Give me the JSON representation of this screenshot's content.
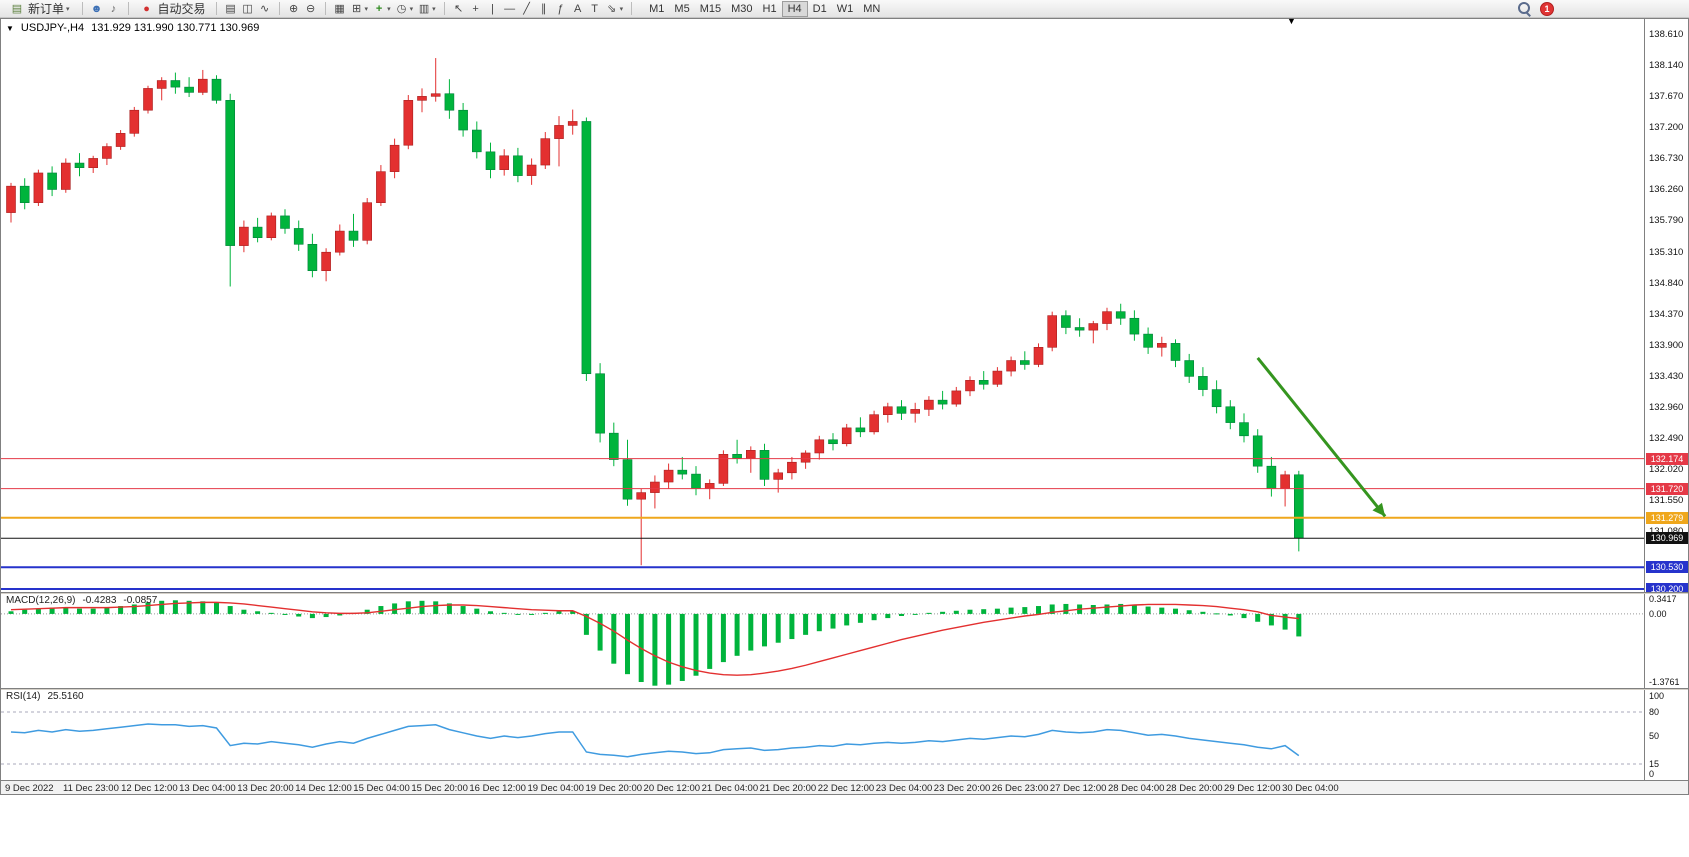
{
  "toolbar": {
    "new_order_label": "新订单",
    "autotrade_label": "自动交易",
    "notification_count": "1",
    "timeframes": [
      "M1",
      "M5",
      "M15",
      "M30",
      "H1",
      "H4",
      "D1",
      "W1",
      "MN"
    ],
    "active_timeframe": "H4",
    "left_icons": [
      {
        "name": "market-watch-icon",
        "glyph": "☻",
        "color": "#3b6fb5"
      },
      {
        "name": "alerts-icon",
        "glyph": "♪",
        "color": "#666666"
      }
    ],
    "chart_type_icons": [
      {
        "name": "bar-chart-icon",
        "glyph": "▤",
        "color": "#444444"
      },
      {
        "name": "candlestick-icon",
        "glyph": "◫",
        "color": "#444444"
      },
      {
        "name": "line-chart-icon",
        "glyph": "∿",
        "color": "#444444"
      }
    ],
    "zoom_icons": [
      {
        "name": "zoom-in-icon",
        "glyph": "⊕",
        "color": "#444444"
      },
      {
        "name": "zoom-out-icon",
        "glyph": "⊖",
        "color": "#444444"
      }
    ],
    "window_icons": [
      {
        "name": "tile-windows-icon",
        "glyph": "▦",
        "color": "#444444"
      },
      {
        "name": "auto-arrange-icon",
        "glyph": "⊞",
        "color": "#444444",
        "dropdown": true
      },
      {
        "name": "indicators-icon",
        "glyph": "+",
        "color": "#2e8b1e",
        "dropdown": true
      },
      {
        "name": "periods-icon",
        "glyph": "◷",
        "color": "#444444",
        "dropdown": true
      },
      {
        "name": "templates-icon",
        "glyph": "▥",
        "color": "#444444",
        "dropdown": true
      }
    ],
    "draw_icons": [
      {
        "name": "cursor-icon",
        "glyph": "↖",
        "color": "#444444"
      },
      {
        "name": "crosshair-icon",
        "glyph": "+",
        "color": "#444444"
      },
      {
        "name": "vertical-line-icon",
        "glyph": "|",
        "color": "#444444"
      },
      {
        "name": "horizontal-line-icon",
        "glyph": "―",
        "color": "#444444"
      },
      {
        "name": "trendline-icon",
        "glyph": "╱",
        "color": "#444444"
      },
      {
        "name": "channel-icon",
        "glyph": "∥",
        "color": "#444444"
      },
      {
        "name": "fibonacci-icon",
        "glyph": "ƒ",
        "color": "#444444"
      },
      {
        "name": "text-icon",
        "glyph": "A",
        "color": "#444444"
      },
      {
        "name": "label-icon",
        "glyph": "T",
        "color": "#444444"
      },
      {
        "name": "arrows-icon",
        "glyph": "⇘",
        "color": "#444444",
        "dropdown": true
      }
    ]
  },
  "chart_header": {
    "collapse_marker": "▼",
    "shift_marker": "▼",
    "symbol_period": "USDJPY-,H4",
    "ohlc": "131.929 131.990 130.771 130.969"
  },
  "chart_data": [
    {
      "type": "candlestick",
      "title": "USDJPY-,H4",
      "open": "131.929",
      "high": "131.990",
      "low": "130.771",
      "close": "130.969",
      "ylim": [
        130.17,
        138.68
      ],
      "up_color": "#e33030",
      "up_border": "#a81f1f",
      "down_color": "#00b43c",
      "down_border": "#00803a",
      "y_ticks": [
        "138.610",
        "138.140",
        "137.670",
        "137.200",
        "136.730",
        "136.260",
        "135.790",
        "135.310",
        "134.840",
        "134.370",
        "133.900",
        "133.430",
        "132.960",
        "132.490",
        "132.020",
        "131.550",
        "131.080"
      ],
      "x_labels": [
        "9 Dec 2022",
        "11 Dec 23:00",
        "12 Dec 12:00",
        "13 Dec 04:00",
        "13 Dec 20:00",
        "14 Dec 12:00",
        "15 Dec 04:00",
        "15 Dec 20:00",
        "16 Dec 12:00",
        "19 Dec 04:00",
        "19 Dec 20:00",
        "20 Dec 12:00",
        "21 Dec 04:00",
        "21 Dec 20:00",
        "22 Dec 12:00",
        "23 Dec 04:00",
        "23 Dec 20:00",
        "26 Dec 23:00",
        "27 Dec 12:00",
        "28 Dec 04:00",
        "28 Dec 20:00",
        "29 Dec 12:00",
        "30 Dec 04:00"
      ],
      "hlines": [
        {
          "price": 132.174,
          "label": "132.174",
          "color": "#e53947",
          "width": 1
        },
        {
          "price": 131.72,
          "label": "131.720",
          "color": "#e53947",
          "width": 1
        },
        {
          "price": 131.279,
          "label": "131.279",
          "color": "#efa71c",
          "width": 2
        },
        {
          "price": 130.969,
          "label": "130.969",
          "color": "#111111",
          "width": 1
        },
        {
          "price": 130.53,
          "label": "130.530",
          "color": "#2633cc",
          "width": 2
        },
        {
          "price": 130.2,
          "label": "130.200",
          "color": "#2633cc",
          "width": 2
        }
      ],
      "arrow": {
        "from_index": 91,
        "from_price": 133.7,
        "to_index": 100.3,
        "to_price": 131.3,
        "color": "#35951f"
      },
      "candles": [
        [
          135.9,
          136.35,
          135.75,
          136.3
        ],
        [
          136.3,
          136.42,
          135.95,
          136.05
        ],
        [
          136.05,
          136.55,
          136.0,
          136.5
        ],
        [
          136.5,
          136.6,
          136.15,
          136.25
        ],
        [
          136.25,
          136.72,
          136.2,
          136.65
        ],
        [
          136.65,
          136.8,
          136.45,
          136.58
        ],
        [
          136.58,
          136.76,
          136.5,
          136.72
        ],
        [
          136.72,
          136.95,
          136.62,
          136.9
        ],
        [
          136.9,
          137.15,
          136.85,
          137.1
        ],
        [
          137.1,
          137.5,
          137.05,
          137.45
        ],
        [
          137.45,
          137.82,
          137.4,
          137.78
        ],
        [
          137.78,
          137.95,
          137.6,
          137.9
        ],
        [
          137.9,
          138.02,
          137.7,
          137.8
        ],
        [
          137.8,
          137.95,
          137.65,
          137.72
        ],
        [
          137.72,
          138.06,
          137.68,
          137.92
        ],
        [
          137.92,
          137.98,
          137.55,
          137.6
        ],
        [
          137.6,
          137.7,
          134.78,
          135.4
        ],
        [
          135.4,
          135.78,
          135.3,
          135.68
        ],
        [
          135.68,
          135.82,
          135.45,
          135.52
        ],
        [
          135.52,
          135.9,
          135.48,
          135.85
        ],
        [
          135.85,
          135.95,
          135.58,
          135.66
        ],
        [
          135.66,
          135.78,
          135.32,
          135.42
        ],
        [
          135.42,
          135.58,
          134.92,
          135.02
        ],
        [
          135.02,
          135.36,
          134.86,
          135.3
        ],
        [
          135.3,
          135.72,
          135.25,
          135.62
        ],
        [
          135.62,
          135.88,
          135.38,
          135.48
        ],
        [
          135.48,
          136.12,
          135.42,
          136.05
        ],
        [
          136.05,
          136.62,
          136.0,
          136.52
        ],
        [
          136.52,
          137.02,
          136.42,
          136.92
        ],
        [
          136.92,
          137.68,
          136.86,
          137.6
        ],
        [
          137.6,
          137.78,
          137.42,
          137.66
        ],
        [
          137.66,
          138.24,
          137.58,
          137.7
        ],
        [
          137.7,
          137.92,
          137.32,
          137.45
        ],
        [
          137.45,
          137.56,
          137.05,
          137.15
        ],
        [
          137.15,
          137.28,
          136.72,
          136.82
        ],
        [
          136.82,
          136.96,
          136.42,
          136.55
        ],
        [
          136.55,
          136.86,
          136.46,
          136.76
        ],
        [
          136.76,
          136.88,
          136.36,
          136.46
        ],
        [
          136.46,
          136.72,
          136.32,
          136.62
        ],
        [
          136.62,
          137.12,
          136.56,
          137.02
        ],
        [
          137.02,
          137.36,
          136.6,
          137.22
        ],
        [
          137.22,
          137.46,
          137.08,
          137.28
        ],
        [
          137.28,
          137.34,
          133.35,
          133.46
        ],
        [
          133.46,
          133.62,
          132.42,
          132.56
        ],
        [
          132.56,
          132.72,
          132.06,
          132.16
        ],
        [
          132.16,
          132.46,
          131.46,
          131.56
        ],
        [
          131.56,
          131.72,
          130.56,
          131.66
        ],
        [
          131.66,
          131.92,
          131.42,
          131.82
        ],
        [
          131.82,
          132.1,
          131.72,
          132.0
        ],
        [
          132.0,
          132.2,
          131.86,
          131.94
        ],
        [
          131.94,
          132.06,
          131.62,
          131.72
        ],
        [
          131.72,
          131.86,
          131.56,
          131.8
        ],
        [
          131.8,
          132.3,
          131.76,
          132.24
        ],
        [
          132.24,
          132.46,
          132.1,
          132.18
        ],
        [
          132.18,
          132.36,
          131.96,
          132.3
        ],
        [
          132.3,
          132.4,
          131.76,
          131.86
        ],
        [
          131.86,
          132.02,
          131.66,
          131.96
        ],
        [
          131.96,
          132.2,
          131.86,
          132.12
        ],
        [
          132.12,
          132.3,
          132.02,
          132.26
        ],
        [
          132.26,
          132.52,
          132.16,
          132.46
        ],
        [
          132.46,
          132.56,
          132.3,
          132.4
        ],
        [
          132.4,
          132.7,
          132.36,
          132.64
        ],
        [
          132.64,
          132.8,
          132.5,
          132.58
        ],
        [
          132.58,
          132.9,
          132.54,
          132.84
        ],
        [
          132.84,
          133.02,
          132.72,
          132.96
        ],
        [
          132.96,
          133.06,
          132.76,
          132.86
        ],
        [
          132.86,
          133.02,
          132.72,
          132.92
        ],
        [
          132.92,
          133.12,
          132.82,
          133.06
        ],
        [
          133.06,
          133.2,
          132.92,
          133.0
        ],
        [
          133.0,
          133.26,
          132.96,
          133.2
        ],
        [
          133.2,
          133.42,
          133.12,
          133.36
        ],
        [
          133.36,
          133.5,
          133.22,
          133.3
        ],
        [
          133.3,
          133.56,
          133.26,
          133.5
        ],
        [
          133.5,
          133.72,
          133.42,
          133.66
        ],
        [
          133.66,
          133.8,
          133.52,
          133.6
        ],
        [
          133.6,
          133.92,
          133.56,
          133.86
        ],
        [
          133.86,
          134.4,
          133.8,
          134.34
        ],
        [
          134.34,
          134.42,
          134.06,
          134.16
        ],
        [
          134.16,
          134.3,
          134.02,
          134.12
        ],
        [
          134.12,
          134.26,
          133.92,
          134.22
        ],
        [
          134.22,
          134.46,
          134.12,
          134.4
        ],
        [
          134.4,
          134.52,
          134.2,
          134.3
        ],
        [
          134.3,
          134.42,
          133.96,
          134.06
        ],
        [
          134.06,
          134.16,
          133.76,
          133.86
        ],
        [
          133.86,
          134.02,
          133.72,
          133.92
        ],
        [
          133.92,
          133.98,
          133.56,
          133.66
        ],
        [
          133.66,
          133.76,
          133.32,
          133.42
        ],
        [
          133.42,
          133.56,
          133.12,
          133.22
        ],
        [
          133.22,
          133.36,
          132.86,
          132.96
        ],
        [
          132.96,
          133.06,
          132.62,
          132.72
        ],
        [
          132.72,
          132.86,
          132.42,
          132.52
        ],
        [
          132.52,
          132.62,
          131.96,
          132.06
        ],
        [
          132.06,
          132.2,
          131.6,
          131.72
        ],
        [
          131.72,
          131.99,
          131.45,
          131.93
        ],
        [
          131.93,
          131.99,
          130.77,
          130.97
        ]
      ]
    },
    {
      "type": "macd",
      "label": "MACD(12,26,9)",
      "value_main": "-0.4283",
      "value_signal": "-0.0857",
      "ylim": [
        -1.3761,
        0.3417
      ],
      "y_ticks": [
        "0.3417",
        "0.00",
        "-1.3761"
      ],
      "hist_color": "#00b43c",
      "signal_color": "#e33030",
      "histogram": [
        0.05,
        0.08,
        0.1,
        0.12,
        0.12,
        0.1,
        0.1,
        0.12,
        0.15,
        0.18,
        0.22,
        0.25,
        0.26,
        0.25,
        0.24,
        0.22,
        0.15,
        0.08,
        0.05,
        0.02,
        -0.02,
        -0.05,
        -0.08,
        -0.06,
        -0.03,
        0.02,
        0.08,
        0.15,
        0.2,
        0.24,
        0.25,
        0.24,
        0.2,
        0.15,
        0.1,
        0.05,
        0.02,
        0.0,
        -0.02,
        0.02,
        0.05,
        0.05,
        -0.4,
        -0.7,
        -0.95,
        -1.15,
        -1.3,
        -1.37,
        -1.35,
        -1.28,
        -1.18,
        -1.05,
        -0.92,
        -0.8,
        -0.7,
        -0.62,
        -0.55,
        -0.48,
        -0.4,
        -0.33,
        -0.28,
        -0.22,
        -0.17,
        -0.12,
        -0.08,
        -0.04,
        -0.01,
        0.02,
        0.04,
        0.06,
        0.08,
        0.09,
        0.1,
        0.12,
        0.13,
        0.15,
        0.18,
        0.19,
        0.18,
        0.17,
        0.18,
        0.19,
        0.17,
        0.14,
        0.12,
        0.1,
        0.07,
        0.04,
        0.01,
        -0.03,
        -0.08,
        -0.15,
        -0.22,
        -0.3,
        -0.43
      ],
      "signal": [
        0.08,
        0.09,
        0.1,
        0.11,
        0.12,
        0.12,
        0.12,
        0.12,
        0.13,
        0.14,
        0.16,
        0.18,
        0.2,
        0.21,
        0.22,
        0.22,
        0.21,
        0.19,
        0.16,
        0.13,
        0.1,
        0.07,
        0.04,
        0.02,
        0.01,
        0.01,
        0.02,
        0.05,
        0.08,
        0.11,
        0.14,
        0.16,
        0.17,
        0.17,
        0.16,
        0.14,
        0.12,
        0.1,
        0.08,
        0.07,
        0.06,
        0.06,
        -0.05,
        -0.18,
        -0.33,
        -0.5,
        -0.66,
        -0.8,
        -0.92,
        -1.01,
        -1.08,
        -1.13,
        -1.16,
        -1.17,
        -1.16,
        -1.13,
        -1.09,
        -1.04,
        -0.98,
        -0.91,
        -0.84,
        -0.77,
        -0.7,
        -0.63,
        -0.56,
        -0.49,
        -0.43,
        -0.37,
        -0.31,
        -0.26,
        -0.21,
        -0.16,
        -0.12,
        -0.08,
        -0.04,
        -0.01,
        0.03,
        0.06,
        0.09,
        0.11,
        0.13,
        0.15,
        0.17,
        0.18,
        0.18,
        0.18,
        0.17,
        0.16,
        0.14,
        0.11,
        0.08,
        0.04,
        -0.03,
        -0.06,
        -0.09
      ]
    },
    {
      "type": "rsi",
      "label": "RSI(14)",
      "value": "25.5160",
      "ylim": [
        0,
        100
      ],
      "levels": [
        80,
        15
      ],
      "y_ticks": [
        "100",
        "80",
        "50",
        "15",
        "0"
      ],
      "line_color": "#3f9be0",
      "values": [
        55,
        54,
        57,
        55,
        58,
        56,
        57,
        59,
        61,
        63,
        65,
        64,
        64,
        62,
        63,
        60,
        38,
        41,
        40,
        43,
        41,
        39,
        36,
        40,
        43,
        41,
        47,
        52,
        57,
        62,
        63,
        64,
        58,
        54,
        50,
        47,
        50,
        48,
        50,
        53,
        55,
        55,
        30,
        27,
        26,
        24,
        27,
        29,
        31,
        30,
        28,
        29,
        33,
        34,
        35,
        32,
        33,
        35,
        36,
        38,
        37,
        40,
        39,
        41,
        42,
        41,
        42,
        44,
        43,
        45,
        47,
        46,
        48,
        50,
        49,
        52,
        57,
        55,
        54,
        55,
        58,
        57,
        54,
        51,
        52,
        50,
        47,
        45,
        43,
        41,
        39,
        36,
        34,
        38,
        25.5
      ]
    }
  ]
}
